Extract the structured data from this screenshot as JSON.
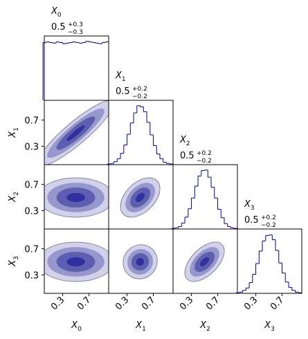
{
  "chart_data": {
    "type": "corner",
    "color": "#00008b",
    "hist_color": "#000080",
    "contour_color": "#6a6a90",
    "variables": [
      {
        "symbol": "X",
        "index": "0",
        "median": "0.5",
        "plus": "+0.3",
        "minus": "−0.3"
      },
      {
        "symbol": "X",
        "index": "1",
        "median": "0.5",
        "plus": "+0.2",
        "minus": "−0.2"
      },
      {
        "symbol": "X",
        "index": "2",
        "median": "0.5",
        "plus": "+0.2",
        "minus": "−0.2"
      },
      {
        "symbol": "X",
        "index": "3",
        "median": "0.5",
        "plus": "+0.2",
        "minus": "−0.2"
      }
    ],
    "lim": [
      0.02,
      1.0
    ],
    "ticks": [
      0.3,
      0.7
    ],
    "bins": [
      0,
      0.05,
      0.1,
      0.15,
      0.2,
      0.25,
      0.3,
      0.35,
      0.4,
      0.45,
      0.5,
      0.55,
      0.6,
      0.65,
      0.7,
      0.75,
      0.8,
      0.85,
      0.9,
      0.95,
      1.0
    ],
    "hist_ylim": [
      0,
      1.08
    ],
    "histograms": [
      [
        0.97,
        0.98,
        0.97,
        0.96,
        0.98,
        0.97,
        0.95,
        0.96,
        0.97,
        0.98,
        0.97,
        0.96,
        0.97,
        0.99,
        0.98,
        0.97,
        0.96,
        0.95,
        0.97,
        0.98
      ],
      [
        0.01,
        0.02,
        0.05,
        0.1,
        0.19,
        0.33,
        0.51,
        0.7,
        0.87,
        0.99,
        0.97,
        0.89,
        0.71,
        0.5,
        0.32,
        0.18,
        0.1,
        0.04,
        0.02,
        0.01
      ],
      [
        0.01,
        0.02,
        0.04,
        0.1,
        0.2,
        0.34,
        0.52,
        0.72,
        0.89,
        0.98,
        0.99,
        0.87,
        0.7,
        0.52,
        0.33,
        0.19,
        0.09,
        0.04,
        0.02,
        0.01
      ],
      [
        0.01,
        0.02,
        0.05,
        0.09,
        0.18,
        0.32,
        0.5,
        0.71,
        0.88,
        0.97,
        0.98,
        0.9,
        0.72,
        0.51,
        0.34,
        0.19,
        0.1,
        0.05,
        0.02,
        0.01
      ]
    ],
    "pairs": [
      {
        "center": [
          0.5,
          0.5
        ],
        "spread": [
          0.29,
          0.25
        ],
        "corr": 0.9
      },
      {
        "center": [
          0.5,
          0.5
        ],
        "spread": [
          0.29,
          0.15
        ],
        "corr": 0
      },
      {
        "center": [
          0.5,
          0.5
        ],
        "spread": [
          0.15,
          0.15
        ],
        "corr": 0.45
      },
      {
        "center": [
          0.5,
          0.5
        ],
        "spread": [
          0.29,
          0.15
        ],
        "corr": 0
      },
      {
        "center": [
          0.5,
          0.5
        ],
        "spread": [
          0.13,
          0.13
        ],
        "corr": 0.05
      },
      {
        "center": [
          0.5,
          0.5
        ],
        "spread": [
          0.15,
          0.15
        ],
        "corr": 0.55
      }
    ],
    "levels": [
      2,
      1.5,
      1,
      0.5
    ]
  }
}
